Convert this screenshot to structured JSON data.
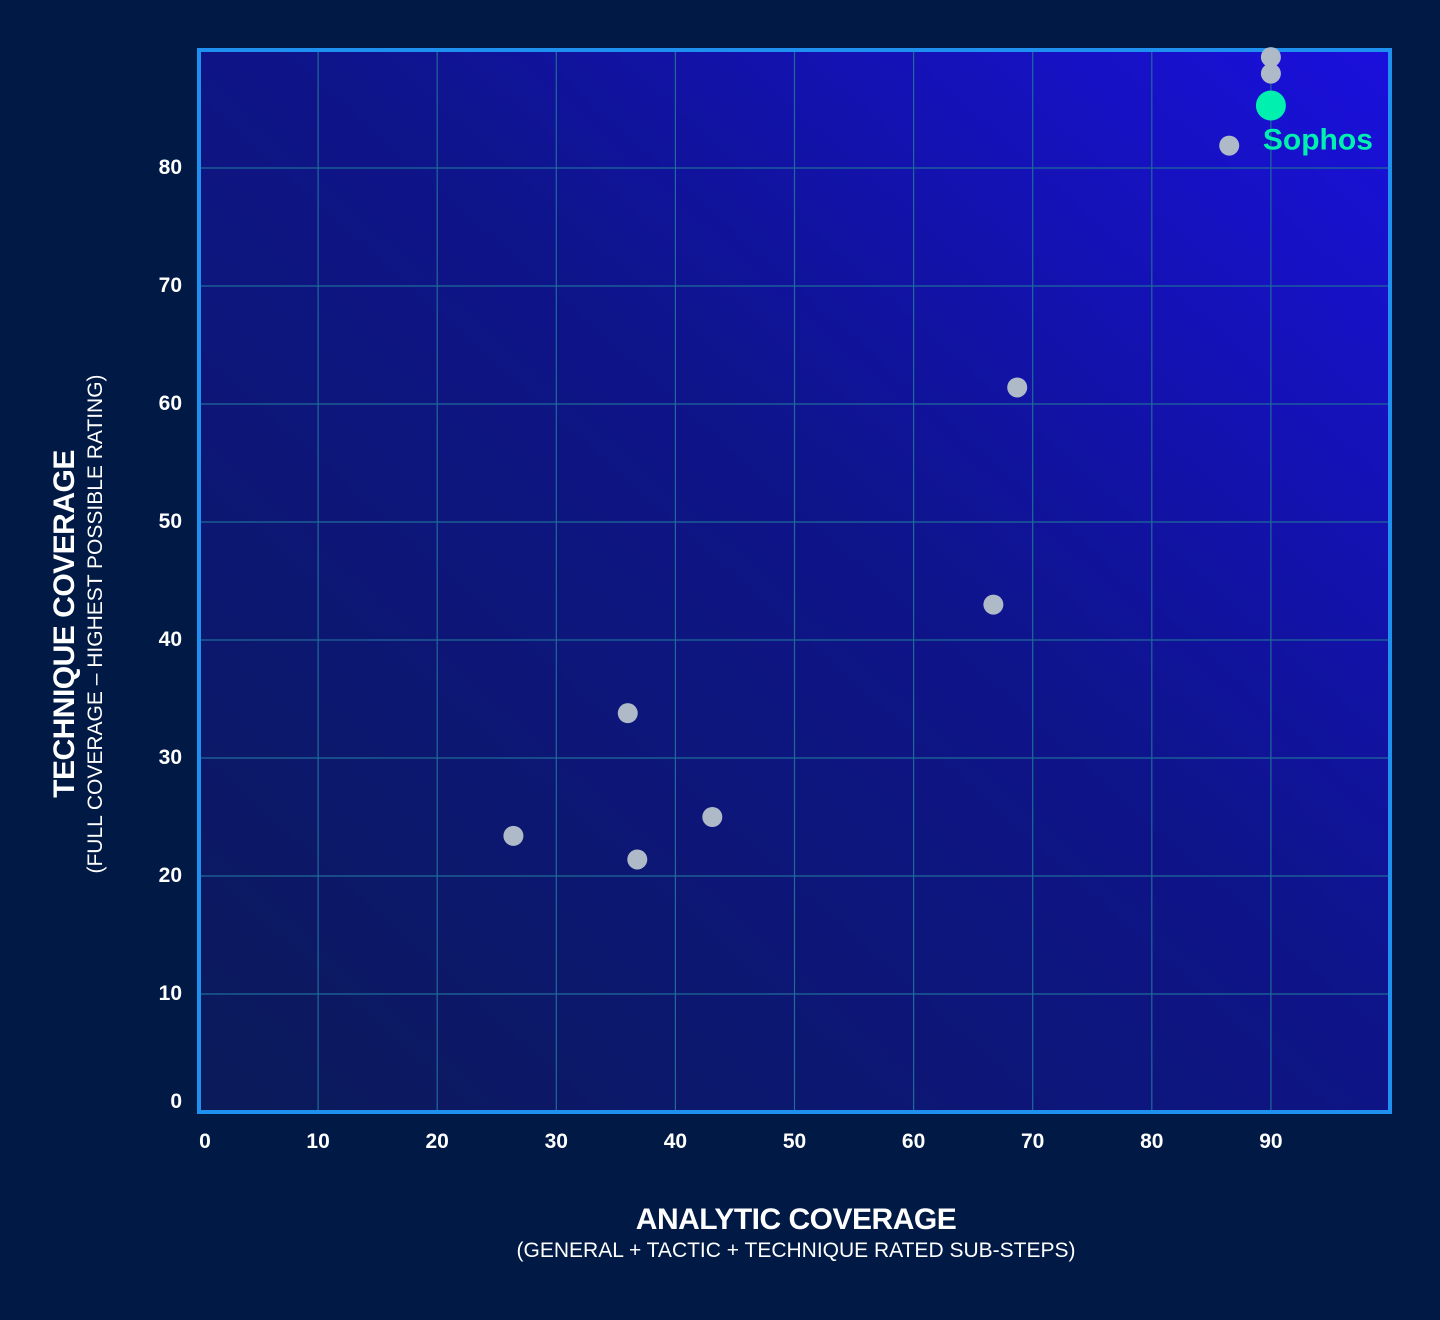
{
  "chart_data": {
    "type": "scatter",
    "xlabel": "ANALYTIC COVERAGE",
    "xlabel_sub": "(GENERAL + TACTIC + TECHNIQUE RATED SUB-STEPS)",
    "ylabel": "TECHNIQUE COVERAGE",
    "ylabel_sub": "(FULL COVERAGE  – HIGHEST POSSIBLE RATING)",
    "xlim": [
      0,
      100
    ],
    "ylim": [
      0,
      90
    ],
    "x_ticks": [
      "0",
      "10",
      "20",
      "30",
      "40",
      "50",
      "60",
      "70",
      "80",
      "90"
    ],
    "y_ticks": [
      "0",
      "10",
      "20",
      "30",
      "40",
      "50",
      "60",
      "70",
      "80"
    ],
    "grid": true,
    "points": [
      {
        "x": 90,
        "y": 89.4
      },
      {
        "x": 90,
        "y": 88.0
      },
      {
        "x": 86.5,
        "y": 81.9
      },
      {
        "x": 68.7,
        "y": 61.4
      },
      {
        "x": 66.7,
        "y": 43.0
      },
      {
        "x": 36.0,
        "y": 33.8
      },
      {
        "x": 43.1,
        "y": 25.0
      },
      {
        "x": 26.4,
        "y": 23.4
      },
      {
        "x": 36.8,
        "y": 21.4
      }
    ],
    "highlight": {
      "name": "Sophos",
      "x": 90,
      "y": 85.3
    },
    "colors": {
      "background": "#001a45",
      "plot_start": "#0b1a58",
      "plot_end": "#1a10dd",
      "border": "#1e90f0",
      "grid": "#1f6a9a",
      "point": "#aebac8",
      "highlight": "#00f0b0"
    }
  }
}
